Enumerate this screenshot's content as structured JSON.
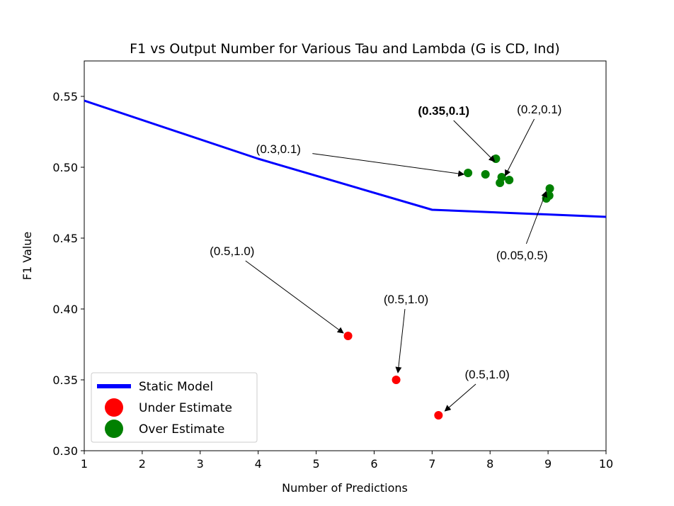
{
  "chart_data": {
    "type": "scatter",
    "title": "F1 vs Output Number for Various Tau and Lambda (G is CD, Ind)",
    "xlabel": "Number of Predictions",
    "ylabel": "F1 Value",
    "xlim": [
      1,
      10
    ],
    "ylim": [
      0.3,
      0.575
    ],
    "xticks": [
      "1",
      "2",
      "3",
      "4",
      "5",
      "6",
      "7",
      "8",
      "9",
      "10"
    ],
    "yticks": [
      "0.30",
      "0.35",
      "0.40",
      "0.45",
      "0.50",
      "0.55"
    ],
    "grid": false,
    "legend_position": "bottom-left",
    "series": [
      {
        "name": "Static Model",
        "kind": "line",
        "color": "#0000ff",
        "x": [
          1,
          4,
          7,
          10
        ],
        "y": [
          0.547,
          0.506,
          0.47,
          0.465
        ]
      },
      {
        "name": "Under Estimate",
        "kind": "scatter",
        "color": "#ff0000",
        "x": [
          5.55,
          6.38,
          7.11
        ],
        "y": [
          0.381,
          0.35,
          0.325
        ]
      },
      {
        "name": "Over Estimate",
        "kind": "scatter",
        "color": "#008000",
        "x": [
          7.62,
          7.92,
          8.1,
          8.17,
          8.2,
          8.33,
          8.97,
          9.02,
          9.03
        ],
        "y": [
          0.496,
          0.495,
          0.506,
          0.489,
          0.493,
          0.491,
          0.478,
          0.48,
          0.485
        ]
      }
    ],
    "annotations": [
      {
        "text": "(0.35,0.1)",
        "bold": true,
        "text_x": 7.2,
        "text_y": 0.537,
        "target_x": 8.08,
        "target_y": 0.504
      },
      {
        "text": "(0.2,0.1)",
        "bold": false,
        "text_x": 8.85,
        "text_y": 0.538,
        "target_x": 8.26,
        "target_y": 0.494
      },
      {
        "text": "(0.3,0.1)",
        "bold": false,
        "text_x": 4.35,
        "text_y": 0.51,
        "target_x": 7.55,
        "target_y": 0.495
      },
      {
        "text": "(0.05,0.5)",
        "bold": false,
        "text_x": 8.55,
        "text_y": 0.435,
        "target_x": 8.97,
        "target_y": 0.483
      },
      {
        "text": "(0.5,1.0)",
        "bold": false,
        "text_x": 3.55,
        "text_y": 0.438,
        "target_x": 5.47,
        "target_y": 0.383
      },
      {
        "text": "(0.5,1.0)",
        "bold": false,
        "text_x": 6.55,
        "text_y": 0.404,
        "target_x": 6.41,
        "target_y": 0.355
      },
      {
        "text": "(0.5,1.0)",
        "bold": false,
        "text_x": 7.95,
        "text_y": 0.351,
        "target_x": 7.22,
        "target_y": 0.328
      }
    ]
  }
}
